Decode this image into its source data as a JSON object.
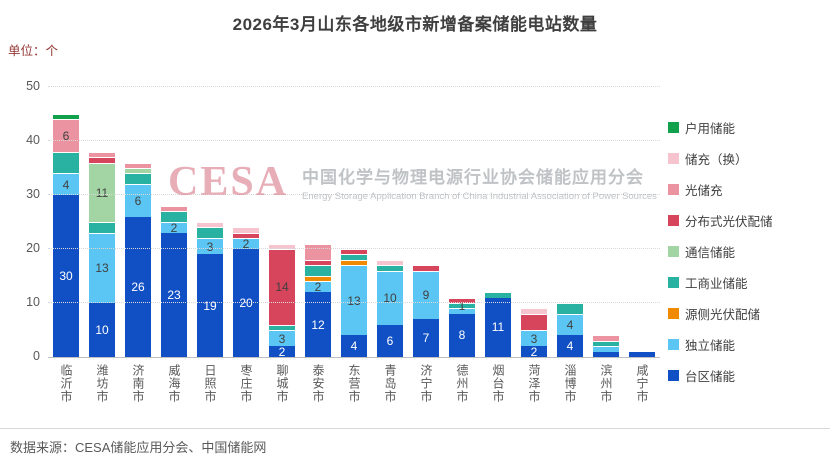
{
  "title": "2026年3月山东各地级市新增备案储能电站数量",
  "unit_label": "单位：个",
  "source": "数据来源：CESA储能应用分会、中国储能网",
  "watermark": {
    "logo": "CESA",
    "cn": "中国化学与物理电源行业协会储能应用分会",
    "en": "Energy Storage Application Branch of China Industrial Association of Power Sources"
  },
  "chart_data": {
    "type": "bar",
    "stacked": true,
    "title": "2026年3月山东各地级市新增备案储能电站数量",
    "ylabel": "单位：个",
    "ylim": [
      0,
      50
    ],
    "yticks": [
      0,
      10,
      20,
      30,
      40,
      50
    ],
    "grid": "dotted horizontal",
    "legend_position": "right",
    "legend": [
      {
        "label": "户用储能",
        "color": "#11A04B"
      },
      {
        "label": "储充（换）",
        "color": "#F6C4CF"
      },
      {
        "label": "光储充",
        "color": "#EC93A2"
      },
      {
        "label": "分布式光伏配储",
        "color": "#D6455C"
      },
      {
        "label": "通信储能",
        "color": "#A2D4A4"
      },
      {
        "label": "工商业储能",
        "color": "#29B2A2"
      },
      {
        "label": "源侧光伏配储",
        "color": "#F08A00"
      },
      {
        "label": "独立储能",
        "color": "#5BC6F3"
      },
      {
        "label": "台区储能",
        "color": "#1150C4"
      }
    ],
    "colors": {
      "户用储能": "#11A04B",
      "储充（换）": "#F6C4CF",
      "光储充": "#EC93A2",
      "分布式光伏配储": "#D6455C",
      "通信储能": "#A2D4A4",
      "工商业储能": "#29B2A2",
      "源侧光伏配储": "#F08A00",
      "独立储能": "#5BC6F3",
      "台区储能": "#1150C4"
    },
    "categories": [
      "临沂市",
      "潍坊市",
      "济南市",
      "威海市",
      "日照市",
      "枣庄市",
      "聊城市",
      "泰安市",
      "东营市",
      "青岛市",
      "济宁市",
      "德州市",
      "烟台市",
      "菏泽市",
      "淄博市",
      "滨州市",
      "咸宁市"
    ],
    "bars": [
      {
        "city": "临沂市",
        "total": 45,
        "segments": [
          {
            "s": "台区储能",
            "v": 30,
            "l": true
          },
          {
            "s": "独立储能",
            "v": 4,
            "l": true
          },
          {
            "s": "工商业储能",
            "v": 4,
            "l": false
          },
          {
            "s": "光储充",
            "v": 6,
            "l": true
          },
          {
            "s": "户用储能",
            "v": 1,
            "l": false
          }
        ]
      },
      {
        "city": "潍坊市",
        "total": 38,
        "segments": [
          {
            "s": "台区储能",
            "v": 10,
            "l": true
          },
          {
            "s": "独立储能",
            "v": 13,
            "l": true
          },
          {
            "s": "工商业储能",
            "v": 2,
            "l": false
          },
          {
            "s": "通信储能",
            "v": 11,
            "l": true
          },
          {
            "s": "分布式光伏配储",
            "v": 1,
            "l": false
          },
          {
            "s": "光储充",
            "v": 1,
            "l": false
          }
        ]
      },
      {
        "city": "济南市",
        "total": 36,
        "segments": [
          {
            "s": "台区储能",
            "v": 26,
            "l": true
          },
          {
            "s": "独立储能",
            "v": 6,
            "l": true
          },
          {
            "s": "工商业储能",
            "v": 2,
            "l": false
          },
          {
            "s": "通信储能",
            "v": 1,
            "l": false
          },
          {
            "s": "光储充",
            "v": 1,
            "l": false
          }
        ]
      },
      {
        "city": "威海市",
        "total": 28,
        "segments": [
          {
            "s": "台区储能",
            "v": 23,
            "l": true
          },
          {
            "s": "独立储能",
            "v": 2,
            "l": true
          },
          {
            "s": "工商业储能",
            "v": 2,
            "l": false
          },
          {
            "s": "光储充",
            "v": 1,
            "l": false
          }
        ]
      },
      {
        "city": "日照市",
        "total": 25,
        "segments": [
          {
            "s": "台区储能",
            "v": 19,
            "l": true
          },
          {
            "s": "独立储能",
            "v": 3,
            "l": true
          },
          {
            "s": "工商业储能",
            "v": 2,
            "l": false
          },
          {
            "s": "储充（换）",
            "v": 1,
            "l": false
          }
        ]
      },
      {
        "city": "枣庄市",
        "total": 24,
        "segments": [
          {
            "s": "台区储能",
            "v": 20,
            "l": true
          },
          {
            "s": "独立储能",
            "v": 2,
            "l": true
          },
          {
            "s": "分布式光伏配储",
            "v": 1,
            "l": false
          },
          {
            "s": "储充（换）",
            "v": 1,
            "l": false
          }
        ]
      },
      {
        "city": "聊城市",
        "total": 21,
        "segments": [
          {
            "s": "台区储能",
            "v": 2,
            "l": true
          },
          {
            "s": "独立储能",
            "v": 3,
            "l": true
          },
          {
            "s": "工商业储能",
            "v": 1,
            "l": false
          },
          {
            "s": "分布式光伏配储",
            "v": 14,
            "l": true
          },
          {
            "s": "储充（换）",
            "v": 1,
            "l": false
          }
        ]
      },
      {
        "city": "泰安市",
        "total": 21,
        "segments": [
          {
            "s": "台区储能",
            "v": 12,
            "l": true
          },
          {
            "s": "独立储能",
            "v": 2,
            "l": true
          },
          {
            "s": "源侧光伏配储",
            "v": 1,
            "l": false
          },
          {
            "s": "工商业储能",
            "v": 2,
            "l": false
          },
          {
            "s": "分布式光伏配储",
            "v": 1,
            "l": false
          },
          {
            "s": "光储充",
            "v": 3,
            "l": false
          }
        ]
      },
      {
        "city": "东营市",
        "total": 20,
        "segments": [
          {
            "s": "台区储能",
            "v": 4,
            "l": true
          },
          {
            "s": "独立储能",
            "v": 13,
            "l": true
          },
          {
            "s": "源侧光伏配储",
            "v": 1,
            "l": false
          },
          {
            "s": "工商业储能",
            "v": 1,
            "l": false
          },
          {
            "s": "分布式光伏配储",
            "v": 1,
            "l": false
          }
        ]
      },
      {
        "city": "青岛市",
        "total": 18,
        "segments": [
          {
            "s": "台区储能",
            "v": 6,
            "l": true
          },
          {
            "s": "独立储能",
            "v": 10,
            "l": true
          },
          {
            "s": "工商业储能",
            "v": 1,
            "l": false
          },
          {
            "s": "储充（换）",
            "v": 1,
            "l": false
          }
        ]
      },
      {
        "city": "济宁市",
        "total": 17,
        "segments": [
          {
            "s": "台区储能",
            "v": 7,
            "l": true
          },
          {
            "s": "独立储能",
            "v": 9,
            "l": true
          },
          {
            "s": "分布式光伏配储",
            "v": 1,
            "l": false
          }
        ]
      },
      {
        "city": "德州市",
        "total": 11,
        "segments": [
          {
            "s": "台区储能",
            "v": 8,
            "l": true
          },
          {
            "s": "独立储能",
            "v": 1,
            "l": false
          },
          {
            "s": "工商业储能",
            "v": 1,
            "l": true
          },
          {
            "s": "分布式光伏配储",
            "v": 1,
            "l": false
          }
        ]
      },
      {
        "city": "烟台市",
        "total": 12,
        "segments": [
          {
            "s": "台区储能",
            "v": 11,
            "l": true
          },
          {
            "s": "工商业储能",
            "v": 1,
            "l": false
          }
        ]
      },
      {
        "city": "菏泽市",
        "total": 9,
        "segments": [
          {
            "s": "台区储能",
            "v": 2,
            "l": true
          },
          {
            "s": "独立储能",
            "v": 3,
            "l": true
          },
          {
            "s": "分布式光伏配储",
            "v": 3,
            "l": false
          },
          {
            "s": "储充（换）",
            "v": 1,
            "l": false
          }
        ]
      },
      {
        "city": "淄博市",
        "total": 10,
        "segments": [
          {
            "s": "台区储能",
            "v": 4,
            "l": true
          },
          {
            "s": "独立储能",
            "v": 4,
            "l": true
          },
          {
            "s": "工商业储能",
            "v": 2,
            "l": false
          }
        ]
      },
      {
        "city": "滨州市",
        "total": 4,
        "segments": [
          {
            "s": "台区储能",
            "v": 1,
            "l": false
          },
          {
            "s": "独立储能",
            "v": 1,
            "l": false
          },
          {
            "s": "工商业储能",
            "v": 1,
            "l": false
          },
          {
            "s": "光储充",
            "v": 1,
            "l": false
          }
        ]
      },
      {
        "city": "咸宁市",
        "total": 1,
        "segments": [
          {
            "s": "台区储能",
            "v": 1,
            "l": false
          }
        ]
      }
    ]
  }
}
